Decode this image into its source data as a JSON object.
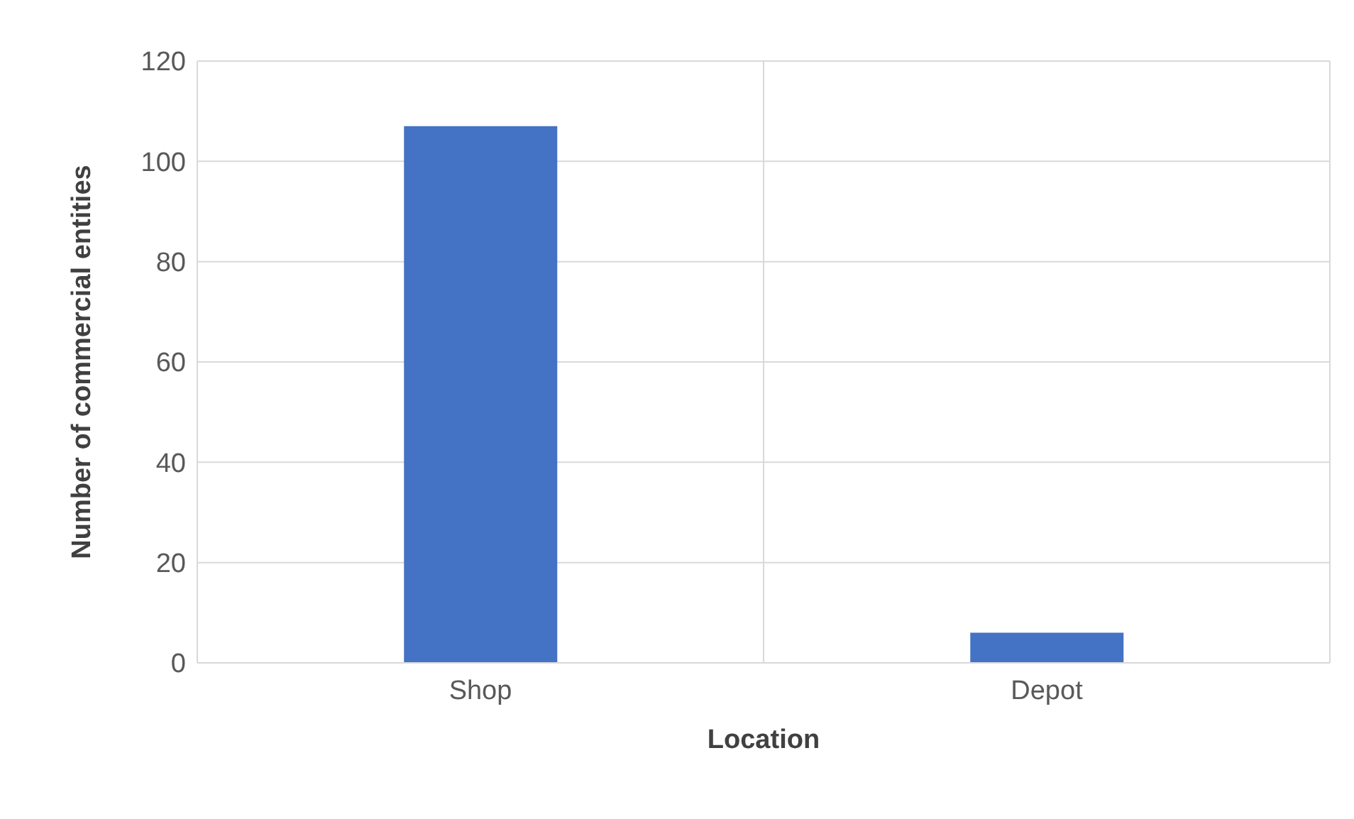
{
  "chart_data": {
    "type": "bar",
    "xlabel": "Location",
    "ylabel": "Number of commercial entities",
    "categories": [
      "Shop",
      "Depot"
    ],
    "values": [
      107,
      6
    ],
    "color": "#4472c4",
    "ylim": [
      0,
      120
    ],
    "yticks": [
      0,
      20,
      40,
      60,
      80,
      100,
      120
    ],
    "grid": true
  }
}
